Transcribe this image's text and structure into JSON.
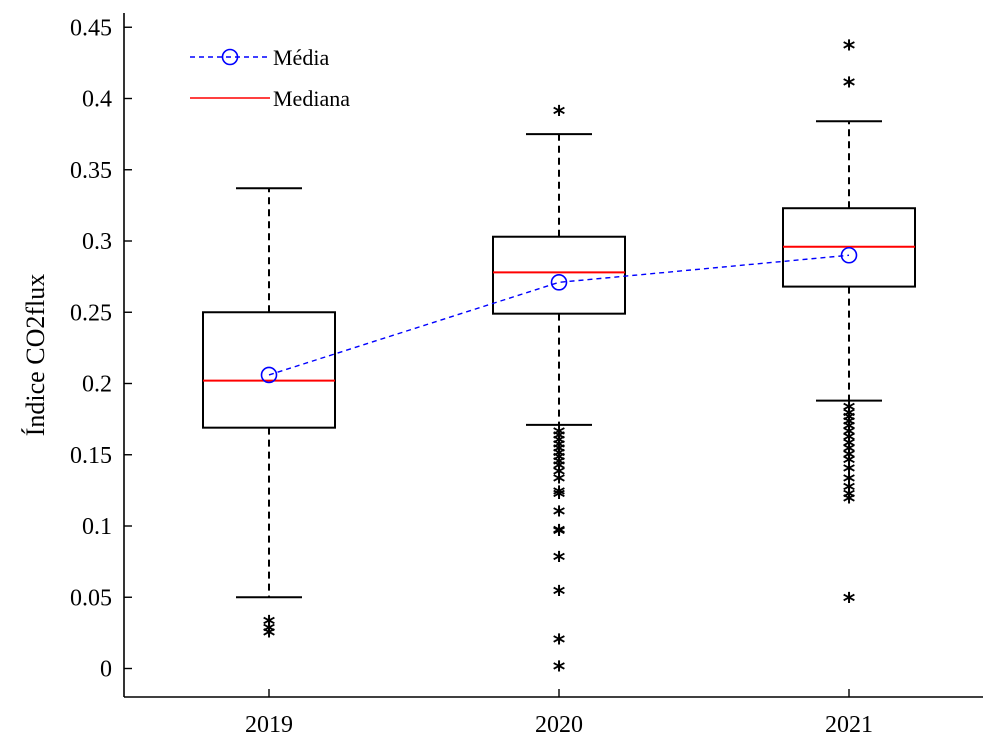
{
  "chart_data": {
    "type": "boxplot",
    "categories": [
      "2019",
      "2020",
      "2021"
    ],
    "ylabel": "Índice CO2flux",
    "xlabel": "",
    "ylim": [
      -0.02,
      0.46
    ],
    "yticks": [
      0,
      0.05,
      0.1,
      0.15,
      0.2,
      0.25,
      0.3,
      0.35,
      0.4,
      0.45
    ],
    "ytick_labels": [
      "0",
      "0.05",
      "0.1",
      "0.15",
      "0.2",
      "0.25",
      "0.3",
      "0.35",
      "0.4",
      "0.45"
    ],
    "boxes": [
      {
        "category": "2019",
        "whisker_low": 0.05,
        "q1": 0.169,
        "median": 0.202,
        "q3": 0.25,
        "whisker_high": 0.337,
        "mean": 0.206,
        "outliers": [
          0.025,
          0.028,
          0.033
        ]
      },
      {
        "category": "2020",
        "whisker_low": 0.171,
        "q1": 0.249,
        "median": 0.278,
        "q3": 0.303,
        "whisker_high": 0.375,
        "mean": 0.271,
        "outliers": [
          0.391,
          0.166,
          0.163,
          0.16,
          0.157,
          0.154,
          0.151,
          0.148,
          0.145,
          0.142,
          0.138,
          0.133,
          0.124,
          0.122,
          0.11,
          0.097,
          0.096,
          0.078,
          0.054,
          0.02,
          0.001
        ]
      },
      {
        "category": "2021",
        "whisker_low": 0.188,
        "q1": 0.268,
        "median": 0.296,
        "q3": 0.323,
        "whisker_high": 0.384,
        "mean": 0.29,
        "outliers": [
          0.437,
          0.411,
          0.183,
          0.179,
          0.176,
          0.173,
          0.17,
          0.166,
          0.162,
          0.158,
          0.154,
          0.15,
          0.146,
          0.14,
          0.133,
          0.127,
          0.122,
          0.119,
          0.049
        ]
      }
    ],
    "legend": {
      "placement": "top-left",
      "items": [
        {
          "label": "Média",
          "style": "dashed-line-circle",
          "color": "#0000ff"
        },
        {
          "label": "Mediana",
          "style": "solid-line",
          "color": "#ff0000"
        }
      ]
    },
    "colors": {
      "box": "#000000",
      "median": "#ff0000",
      "mean": "#0000ff",
      "outlier": "#000000"
    },
    "grid": false
  }
}
